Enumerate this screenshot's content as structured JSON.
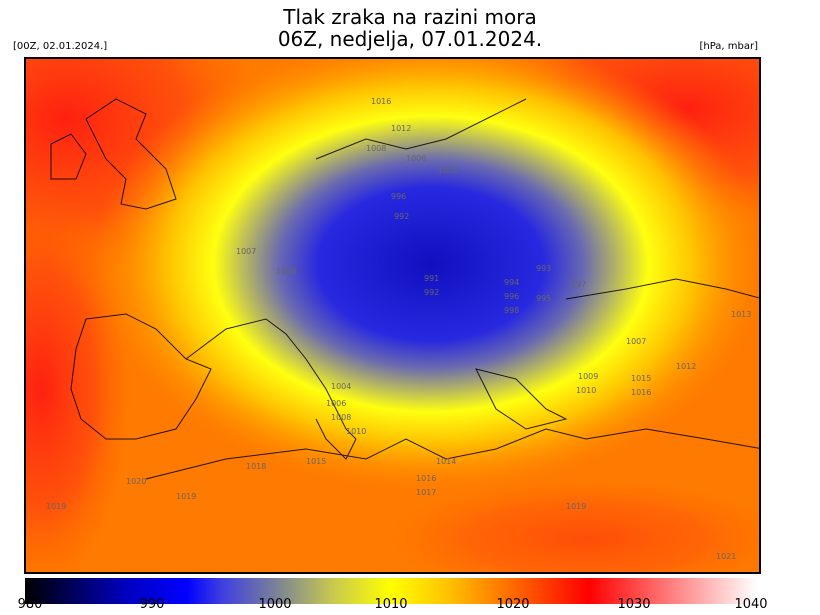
{
  "header": {
    "title_line1": "Tlak zraka na razini mora",
    "title_line2": "06Z, nedjelja, 07.01.2024.",
    "run_label": "[00Z, 02.01.2024.]",
    "unit_label": "[hPa, mbar]"
  },
  "colorbar": {
    "ticks": [
      "980",
      "990",
      "1000",
      "1010",
      "1020",
      "1030",
      "1040"
    ],
    "range": [
      980,
      1040
    ],
    "colors": [
      "#000000",
      "#0000ff",
      "#808890",
      "#ffff00",
      "#ff7000",
      "#ff0000",
      "#ffffff"
    ]
  },
  "map": {
    "variable": "sea level pressure",
    "low_center_hpa": 991,
    "contour_labels": [
      "1016",
      "1012",
      "1008",
      "1006",
      "1005",
      "996",
      "992",
      "1007",
      "1008",
      "991",
      "992",
      "993",
      "994",
      "995",
      "996",
      "997",
      "998",
      "1007",
      "1010",
      "1009",
      "1015",
      "1016",
      "1004",
      "1006",
      "1008",
      "1010",
      "1014",
      "1015",
      "1016",
      "1017",
      "1018",
      "1019",
      "1019",
      "1020",
      "1013",
      "1012",
      "1021",
      "1019"
    ]
  }
}
